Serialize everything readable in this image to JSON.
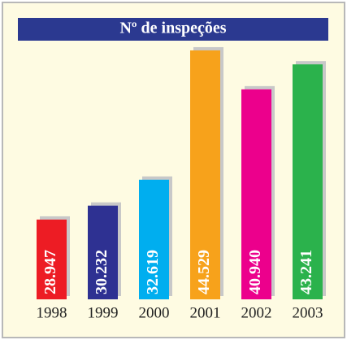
{
  "chart_data": {
    "type": "bar",
    "title": "Nº de inspeções",
    "categories": [
      "1998",
      "1999",
      "2000",
      "2001",
      "2002",
      "2003"
    ],
    "values": [
      28947,
      30232,
      32619,
      44529,
      40940,
      43241
    ],
    "value_labels": [
      "28.947",
      "30.232",
      "32.619",
      "44.529",
      "40.940",
      "43.241"
    ],
    "colors": [
      "#ed1c24",
      "#2e3192",
      "#00aeef",
      "#f7a21b",
      "#ec008c",
      "#2bb24c"
    ],
    "ylim": [
      21600,
      45500
    ]
  }
}
